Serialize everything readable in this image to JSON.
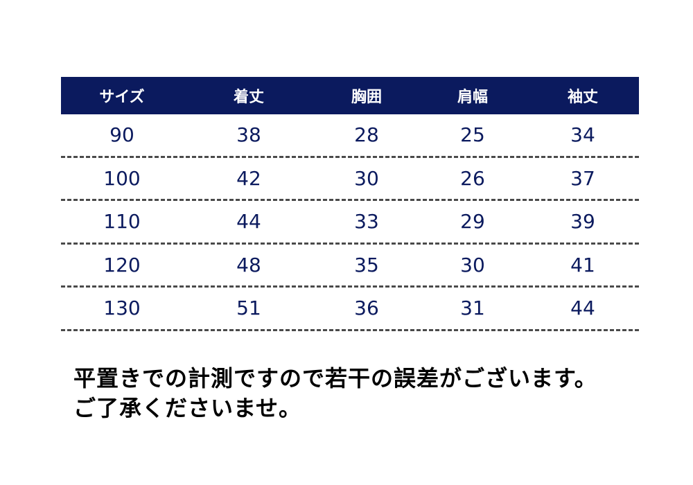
{
  "table": {
    "headers": [
      "サイズ",
      "着丈",
      "胸囲",
      "肩幅",
      "袖丈"
    ],
    "rows": [
      [
        "90",
        "38",
        "28",
        "25",
        "34"
      ],
      [
        "100",
        "42",
        "30",
        "26",
        "37"
      ],
      [
        "110",
        "44",
        "33",
        "29",
        "39"
      ],
      [
        "120",
        "48",
        "35",
        "30",
        "41"
      ],
      [
        "130",
        "51",
        "36",
        "31",
        "44"
      ]
    ]
  },
  "note": {
    "line1": "平置きでの計測ですので若干の誤差がございます。",
    "line2": "ご了承くださいませ。"
  },
  "colors": {
    "header_bg": "#0b1a5e",
    "header_text": "#ffffff",
    "cell_text": "#0b1a5e",
    "divider": "#4a4a4a"
  }
}
